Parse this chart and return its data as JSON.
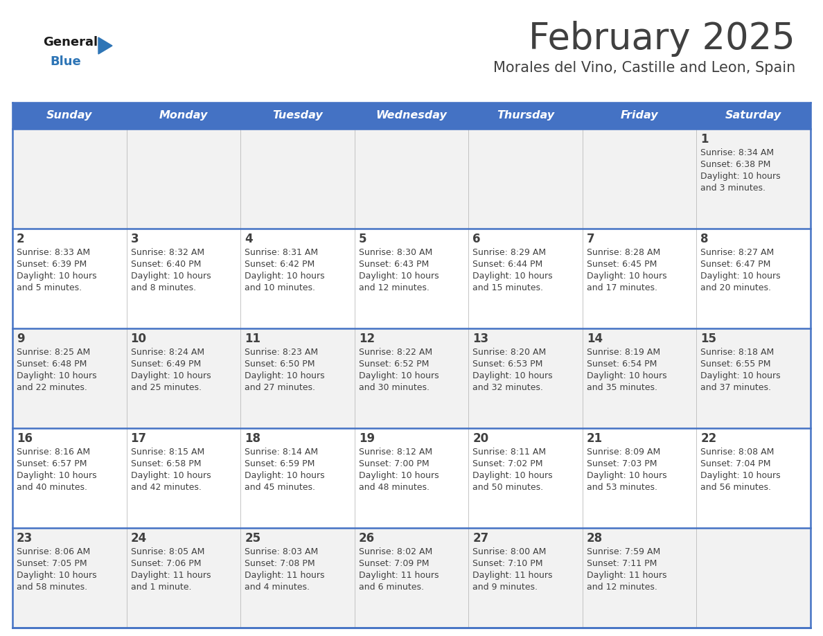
{
  "title": "February 2025",
  "subtitle": "Morales del Vino, Castille and Leon, Spain",
  "header_bg": "#4472C4",
  "header_text_color": "#FFFFFF",
  "days_of_week": [
    "Sunday",
    "Monday",
    "Tuesday",
    "Wednesday",
    "Thursday",
    "Friday",
    "Saturday"
  ],
  "cell_bg_light": "#F2F2F2",
  "cell_bg_white": "#FFFFFF",
  "divider_color": "#4472C4",
  "text_color": "#404040",
  "logo_general_color": "#1a1a1a",
  "logo_blue_color": "#2E75B6",
  "calendar": [
    [
      null,
      null,
      null,
      null,
      null,
      null,
      {
        "day": 1,
        "sunrise": "8:34 AM",
        "sunset": "6:38 PM",
        "daylight_l1": "Daylight: 10 hours",
        "daylight_l2": "and 3 minutes."
      }
    ],
    [
      {
        "day": 2,
        "sunrise": "8:33 AM",
        "sunset": "6:39 PM",
        "daylight_l1": "Daylight: 10 hours",
        "daylight_l2": "and 5 minutes."
      },
      {
        "day": 3,
        "sunrise": "8:32 AM",
        "sunset": "6:40 PM",
        "daylight_l1": "Daylight: 10 hours",
        "daylight_l2": "and 8 minutes."
      },
      {
        "day": 4,
        "sunrise": "8:31 AM",
        "sunset": "6:42 PM",
        "daylight_l1": "Daylight: 10 hours",
        "daylight_l2": "and 10 minutes."
      },
      {
        "day": 5,
        "sunrise": "8:30 AM",
        "sunset": "6:43 PM",
        "daylight_l1": "Daylight: 10 hours",
        "daylight_l2": "and 12 minutes."
      },
      {
        "day": 6,
        "sunrise": "8:29 AM",
        "sunset": "6:44 PM",
        "daylight_l1": "Daylight: 10 hours",
        "daylight_l2": "and 15 minutes."
      },
      {
        "day": 7,
        "sunrise": "8:28 AM",
        "sunset": "6:45 PM",
        "daylight_l1": "Daylight: 10 hours",
        "daylight_l2": "and 17 minutes."
      },
      {
        "day": 8,
        "sunrise": "8:27 AM",
        "sunset": "6:47 PM",
        "daylight_l1": "Daylight: 10 hours",
        "daylight_l2": "and 20 minutes."
      }
    ],
    [
      {
        "day": 9,
        "sunrise": "8:25 AM",
        "sunset": "6:48 PM",
        "daylight_l1": "Daylight: 10 hours",
        "daylight_l2": "and 22 minutes."
      },
      {
        "day": 10,
        "sunrise": "8:24 AM",
        "sunset": "6:49 PM",
        "daylight_l1": "Daylight: 10 hours",
        "daylight_l2": "and 25 minutes."
      },
      {
        "day": 11,
        "sunrise": "8:23 AM",
        "sunset": "6:50 PM",
        "daylight_l1": "Daylight: 10 hours",
        "daylight_l2": "and 27 minutes."
      },
      {
        "day": 12,
        "sunrise": "8:22 AM",
        "sunset": "6:52 PM",
        "daylight_l1": "Daylight: 10 hours",
        "daylight_l2": "and 30 minutes."
      },
      {
        "day": 13,
        "sunrise": "8:20 AM",
        "sunset": "6:53 PM",
        "daylight_l1": "Daylight: 10 hours",
        "daylight_l2": "and 32 minutes."
      },
      {
        "day": 14,
        "sunrise": "8:19 AM",
        "sunset": "6:54 PM",
        "daylight_l1": "Daylight: 10 hours",
        "daylight_l2": "and 35 minutes."
      },
      {
        "day": 15,
        "sunrise": "8:18 AM",
        "sunset": "6:55 PM",
        "daylight_l1": "Daylight: 10 hours",
        "daylight_l2": "and 37 minutes."
      }
    ],
    [
      {
        "day": 16,
        "sunrise": "8:16 AM",
        "sunset": "6:57 PM",
        "daylight_l1": "Daylight: 10 hours",
        "daylight_l2": "and 40 minutes."
      },
      {
        "day": 17,
        "sunrise": "8:15 AM",
        "sunset": "6:58 PM",
        "daylight_l1": "Daylight: 10 hours",
        "daylight_l2": "and 42 minutes."
      },
      {
        "day": 18,
        "sunrise": "8:14 AM",
        "sunset": "6:59 PM",
        "daylight_l1": "Daylight: 10 hours",
        "daylight_l2": "and 45 minutes."
      },
      {
        "day": 19,
        "sunrise": "8:12 AM",
        "sunset": "7:00 PM",
        "daylight_l1": "Daylight: 10 hours",
        "daylight_l2": "and 48 minutes."
      },
      {
        "day": 20,
        "sunrise": "8:11 AM",
        "sunset": "7:02 PM",
        "daylight_l1": "Daylight: 10 hours",
        "daylight_l2": "and 50 minutes."
      },
      {
        "day": 21,
        "sunrise": "8:09 AM",
        "sunset": "7:03 PM",
        "daylight_l1": "Daylight: 10 hours",
        "daylight_l2": "and 53 minutes."
      },
      {
        "day": 22,
        "sunrise": "8:08 AM",
        "sunset": "7:04 PM",
        "daylight_l1": "Daylight: 10 hours",
        "daylight_l2": "and 56 minutes."
      }
    ],
    [
      {
        "day": 23,
        "sunrise": "8:06 AM",
        "sunset": "7:05 PM",
        "daylight_l1": "Daylight: 10 hours",
        "daylight_l2": "and 58 minutes."
      },
      {
        "day": 24,
        "sunrise": "8:05 AM",
        "sunset": "7:06 PM",
        "daylight_l1": "Daylight: 11 hours",
        "daylight_l2": "and 1 minute."
      },
      {
        "day": 25,
        "sunrise": "8:03 AM",
        "sunset": "7:08 PM",
        "daylight_l1": "Daylight: 11 hours",
        "daylight_l2": "and 4 minutes."
      },
      {
        "day": 26,
        "sunrise": "8:02 AM",
        "sunset": "7:09 PM",
        "daylight_l1": "Daylight: 11 hours",
        "daylight_l2": "and 6 minutes."
      },
      {
        "day": 27,
        "sunrise": "8:00 AM",
        "sunset": "7:10 PM",
        "daylight_l1": "Daylight: 11 hours",
        "daylight_l2": "and 9 minutes."
      },
      {
        "day": 28,
        "sunrise": "7:59 AM",
        "sunset": "7:11 PM",
        "daylight_l1": "Daylight: 11 hours",
        "daylight_l2": "and 12 minutes."
      },
      null
    ]
  ],
  "figsize": [
    11.88,
    9.18
  ],
  "dpi": 100,
  "title_fontsize": 38,
  "subtitle_fontsize": 15,
  "header_fontsize": 11.5,
  "day_num_fontsize": 12,
  "cell_text_fontsize": 9,
  "logo_general_fontsize": 13,
  "logo_blue_fontsize": 13
}
